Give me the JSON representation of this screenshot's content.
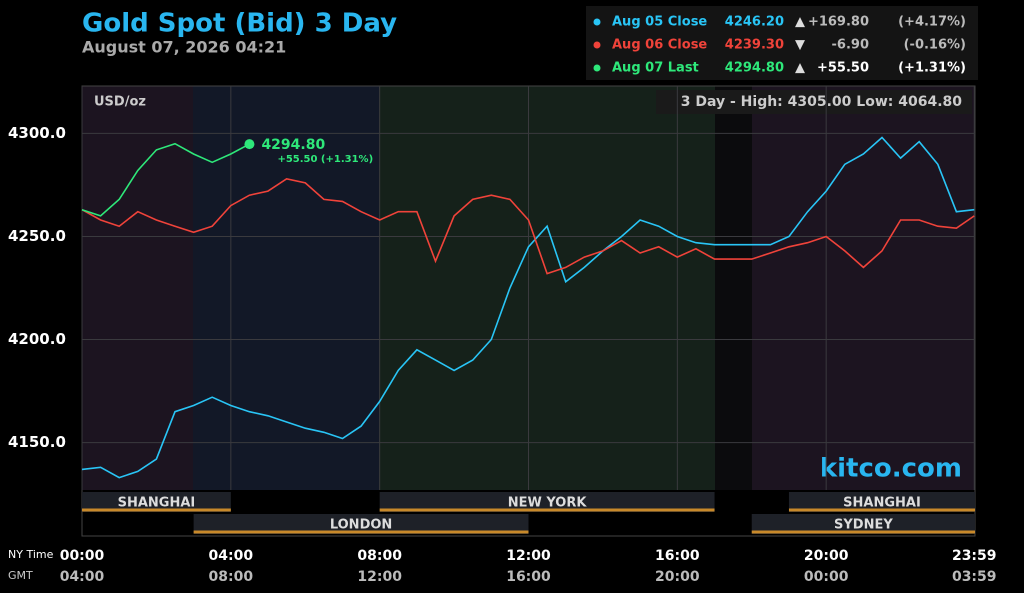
{
  "chart_data": {
    "type": "line",
    "title": "Gold Spot (Bid) 3 Day",
    "subtitle": "August 07, 2026 04:21",
    "y_label": "USD/oz",
    "range_note": "3 Day - High: 4305.00  Low: 4064.80",
    "watermark": "kitco.com",
    "x_row_label": "NY Time",
    "x2_row_label": "GMT",
    "xlim": [
      0,
      24
    ],
    "xticks": [
      {
        "value": 0,
        "label": "00:00"
      },
      {
        "value": 4,
        "label": "04:00"
      },
      {
        "value": 8,
        "label": "08:00"
      },
      {
        "value": 12,
        "label": "12:00"
      },
      {
        "value": 16,
        "label": "16:00"
      },
      {
        "value": 20,
        "label": "20:00"
      },
      {
        "value": 23.98,
        "label": "23:59"
      }
    ],
    "x2_tick_labels": [
      "04:00",
      "08:00",
      "12:00",
      "16:00",
      "20:00",
      "00:00",
      "03:59"
    ],
    "ylim": [
      4127,
      4323
    ],
    "yticks": [
      {
        "value": 4150,
        "label": "4150.0"
      },
      {
        "value": 4200,
        "label": "4200.0"
      },
      {
        "value": 4250,
        "label": "4250.0"
      },
      {
        "value": 4300,
        "label": "4300.0"
      }
    ],
    "grid": true,
    "sessions": [
      {
        "name": "SHANGHAI",
        "start": 0,
        "end": 4
      },
      {
        "name": "LONDON",
        "start": 3,
        "end": 12
      },
      {
        "name": "NEW YORK",
        "start": 8,
        "end": 17
      },
      {
        "name": "SHANGHAI",
        "start": 19,
        "end": 24
      },
      {
        "name": "SYDNEY",
        "start": 18,
        "end": 24
      }
    ],
    "x": [
      0,
      0.5,
      1,
      1.5,
      2,
      2.5,
      3,
      3.5,
      4,
      4.5,
      5,
      5.5,
      6,
      6.5,
      7,
      7.5,
      8,
      8.5,
      9,
      9.5,
      10,
      10.5,
      11,
      11.5,
      12,
      12.5,
      13,
      13.5,
      14,
      14.5,
      15,
      15.5,
      16,
      16.5,
      17,
      17.5,
      18,
      18.5,
      19,
      19.5,
      20,
      20.5,
      21,
      21.5,
      22,
      22.5,
      23,
      23.5,
      23.98
    ],
    "series": [
      {
        "name": "Aug 05 Close",
        "color": "#29c5f6",
        "last": "4246.20",
        "arrow": "▲",
        "change": "+169.80",
        "pct": "(+4.17%)",
        "values": [
          4137,
          4138,
          4133,
          4136,
          4142,
          4165,
          4168,
          4172,
          4168,
          4165,
          4163,
          4160,
          4157,
          4155,
          4152,
          4158,
          4170,
          4185,
          4195,
          4190,
          4185,
          4190,
          4200,
          4225,
          4245,
          4255,
          4228,
          4235,
          4243,
          4250,
          4258,
          4255,
          4250,
          4247,
          4246,
          4246,
          4246,
          4246,
          4250,
          4262,
          4272,
          4285,
          4290,
          4298,
          4288,
          4296,
          4285,
          4262,
          4263
        ]
      },
      {
        "name": "Aug 06 Close",
        "color": "#f0433a",
        "last": "4239.30",
        "arrow": "▼",
        "change": "-6.90",
        "pct": "(-0.16%)",
        "values": [
          4263,
          4258,
          4255,
          4262,
          4258,
          4255,
          4252,
          4255,
          4265,
          4270,
          4272,
          4278,
          4276,
          4268,
          4267,
          4262,
          4258,
          4262,
          4262,
          4238,
          4260,
          4268,
          4270,
          4268,
          4258,
          4232,
          4235,
          4240,
          4243,
          4248,
          4242,
          4245,
          4240,
          4244,
          4239,
          4239,
          4239,
          4242,
          4245,
          4247,
          4250,
          4243,
          4235,
          4243,
          4258,
          4258,
          4255,
          4254,
          4260
        ]
      },
      {
        "name": "Aug 07 Last",
        "color": "#2ee87a",
        "last": "4294.80",
        "arrow": "▲",
        "change": "+55.50",
        "pct": "(+1.31%)",
        "values": [
          4263,
          4260,
          4268,
          4282,
          4292,
          4295,
          4290,
          4286,
          4290,
          4294.8,
          null,
          null,
          null,
          null,
          null,
          null,
          null,
          null,
          null,
          null,
          null,
          null,
          null,
          null,
          null,
          null,
          null,
          null,
          null,
          null,
          null,
          null,
          null,
          null,
          null,
          null,
          null,
          null,
          null,
          null,
          null,
          null,
          null,
          null,
          null,
          null,
          null,
          null,
          null
        ]
      }
    ],
    "last_label": "4294.80",
    "last_change": "+55.50 (+1.31%)"
  }
}
